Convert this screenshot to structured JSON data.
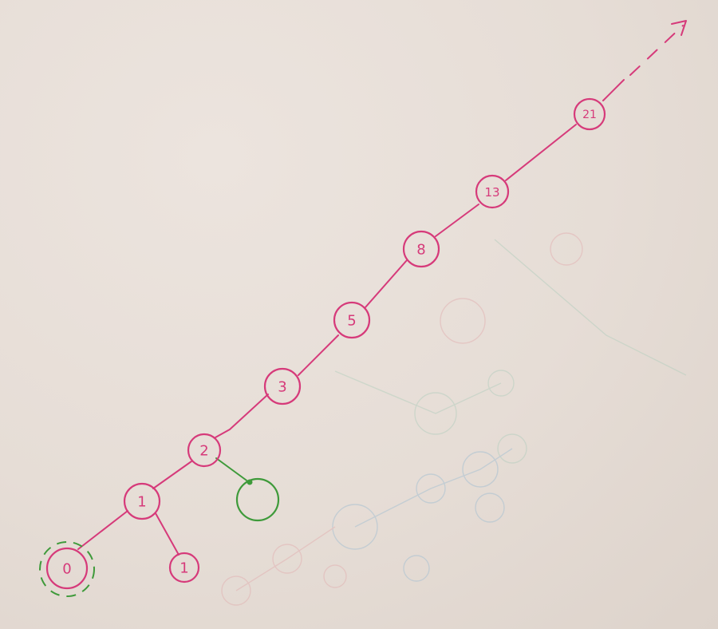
{
  "colors": {
    "paper": "#e8dfd8",
    "ink": "#d63a7a",
    "green": "#3e9a3a",
    "ghost_blue": "#a9c1d2",
    "ghost_green": "#b8cfc0",
    "ghost_red": "#e2b4b4"
  },
  "diagram": {
    "type": "tree",
    "nodes": [
      {
        "id": "n0",
        "label": "0",
        "highlight": "green-dashed"
      },
      {
        "id": "n1",
        "label": "1"
      },
      {
        "id": "n1b",
        "label": "1"
      },
      {
        "id": "n2",
        "label": "2"
      },
      {
        "id": "n3",
        "label": "3"
      },
      {
        "id": "n5",
        "label": "5"
      },
      {
        "id": "n8",
        "label": "8"
      },
      {
        "id": "n13",
        "label": "13"
      },
      {
        "id": "n21",
        "label": "21"
      },
      {
        "id": "empty",
        "label": "",
        "style": "green"
      }
    ],
    "edges": [
      {
        "from": "n0",
        "to": "n1"
      },
      {
        "from": "n1",
        "to": "n1b"
      },
      {
        "from": "n1",
        "to": "n2"
      },
      {
        "from": "n2",
        "to": "n3"
      },
      {
        "from": "n2",
        "to": "empty",
        "style": "green"
      },
      {
        "from": "n3",
        "to": "n5"
      },
      {
        "from": "n5",
        "to": "n8"
      },
      {
        "from": "n8",
        "to": "n13"
      },
      {
        "from": "n13",
        "to": "n21"
      },
      {
        "from": "n21",
        "to": "continues",
        "style": "dashed-arrow"
      }
    ]
  }
}
